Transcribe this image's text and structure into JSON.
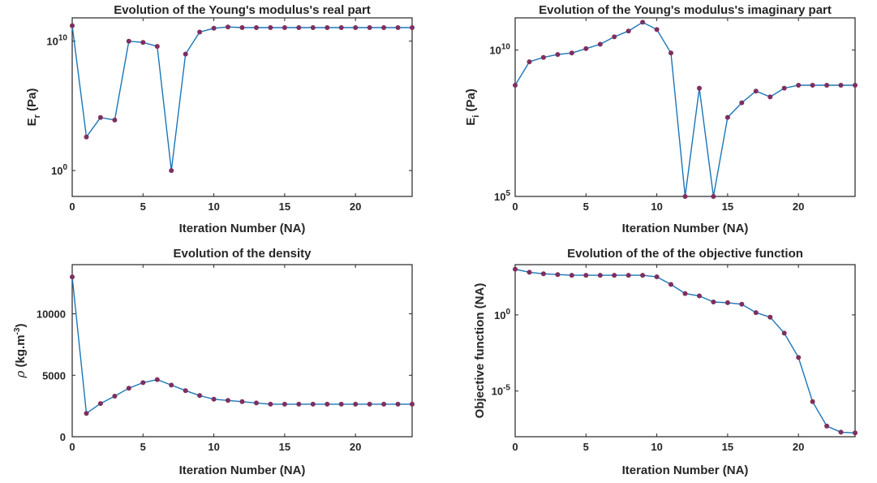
{
  "chart_data": [
    {
      "type": "line",
      "title": "Evolution of the Young's modulus's real part",
      "xlabel": "Iteration Number (NA)",
      "ylabel": "E_r (Pa)",
      "yscale": "log",
      "xlim": [
        0,
        24
      ],
      "ylim_log10": [
        -2,
        11.8
      ],
      "x": [
        0,
        1,
        2,
        3,
        4,
        5,
        6,
        7,
        8,
        9,
        10,
        11,
        12,
        13,
        14,
        15,
        16,
        17,
        18,
        19,
        20,
        21,
        22,
        23,
        24
      ],
      "y_log10": [
        11.2,
        2.6,
        4.1,
        3.9,
        10.0,
        9.9,
        9.6,
        0.0,
        9.0,
        10.7,
        11.0,
        11.1,
        11.05,
        11.05,
        11.05,
        11.05,
        11.05,
        11.05,
        11.05,
        11.05,
        11.05,
        11.05,
        11.05,
        11.05,
        11.05
      ],
      "xticks": [
        {
          "v": 0,
          "label": "0"
        },
        {
          "v": 5,
          "label": "5"
        },
        {
          "v": 10,
          "label": "10"
        },
        {
          "v": 15,
          "label": "15"
        },
        {
          "v": 20,
          "label": "20"
        }
      ],
      "yticks": [
        {
          "v": 0,
          "base": "10",
          "exp": "0"
        },
        {
          "v": 10,
          "base": "10",
          "exp": "10"
        }
      ]
    },
    {
      "type": "line",
      "title": "Evolution of the Young's modulus's imaginary part",
      "xlabel": "Iteration Number (NA)",
      "ylabel": "E_i (Pa)",
      "yscale": "log",
      "xlim": [
        0,
        24
      ],
      "ylim_log10": [
        5,
        11.1
      ],
      "x": [
        0,
        1,
        2,
        3,
        4,
        5,
        6,
        7,
        8,
        9,
        10,
        11,
        12,
        13,
        14,
        15,
        16,
        17,
        18,
        19,
        20,
        21,
        22,
        23,
        24
      ],
      "y_log10": [
        8.8,
        9.6,
        9.75,
        9.85,
        9.9,
        10.05,
        10.2,
        10.45,
        10.65,
        10.95,
        10.7,
        9.9,
        5.0,
        8.7,
        5.0,
        7.7,
        8.2,
        8.6,
        8.4,
        8.7,
        8.8,
        8.8,
        8.8,
        8.8,
        8.8
      ],
      "xticks": [
        {
          "v": 0,
          "label": "0"
        },
        {
          "v": 5,
          "label": "5"
        },
        {
          "v": 10,
          "label": "10"
        },
        {
          "v": 15,
          "label": "15"
        },
        {
          "v": 20,
          "label": "20"
        }
      ],
      "yticks": [
        {
          "v": 5,
          "base": "10",
          "exp": "5"
        },
        {
          "v": 10,
          "base": "10",
          "exp": "10"
        }
      ]
    },
    {
      "type": "line",
      "title": "Evolution of the density",
      "xlabel": "Iteration Number (NA)",
      "ylabel": "ρ (kg.m^-3)",
      "yscale": "linear",
      "xlim": [
        0,
        24
      ],
      "ylim": [
        0,
        14000
      ],
      "x": [
        0,
        1,
        2,
        3,
        4,
        5,
        6,
        7,
        8,
        9,
        10,
        11,
        12,
        13,
        14,
        15,
        16,
        17,
        18,
        19,
        20,
        21,
        22,
        23,
        24
      ],
      "y": [
        13000,
        1900,
        2700,
        3300,
        3950,
        4400,
        4650,
        4200,
        3750,
        3350,
        3050,
        2950,
        2850,
        2750,
        2650,
        2650,
        2650,
        2650,
        2650,
        2650,
        2650,
        2650,
        2650,
        2650,
        2650
      ],
      "xticks": [
        {
          "v": 0,
          "label": "0"
        },
        {
          "v": 5,
          "label": "5"
        },
        {
          "v": 10,
          "label": "10"
        },
        {
          "v": 15,
          "label": "15"
        },
        {
          "v": 20,
          "label": "20"
        }
      ],
      "yticks": [
        {
          "v": 0,
          "label": "0"
        },
        {
          "v": 5000,
          "label": "5000"
        },
        {
          "v": 10000,
          "label": "10000"
        }
      ]
    },
    {
      "type": "line",
      "title": "Evolution of the of the objective function",
      "xlabel": "Iteration Number (NA)",
      "ylabel": "Objective function (NA)",
      "yscale": "log",
      "xlim": [
        0,
        24
      ],
      "ylim_log10": [
        -8,
        3.3
      ],
      "x": [
        0,
        1,
        2,
        3,
        4,
        5,
        6,
        7,
        8,
        9,
        10,
        11,
        12,
        13,
        14,
        15,
        16,
        17,
        18,
        19,
        20,
        21,
        22,
        23,
        24
      ],
      "y_log10": [
        3.0,
        2.8,
        2.7,
        2.65,
        2.6,
        2.6,
        2.6,
        2.6,
        2.6,
        2.6,
        2.5,
        2.0,
        1.4,
        1.25,
        0.85,
        0.8,
        0.7,
        0.15,
        -0.15,
        -1.2,
        -2.8,
        -5.7,
        -7.3,
        -7.7,
        -7.75
      ],
      "xticks": [
        {
          "v": 0,
          "label": "0"
        },
        {
          "v": 5,
          "label": "5"
        },
        {
          "v": 10,
          "label": "10"
        },
        {
          "v": 15,
          "label": "15"
        },
        {
          "v": 20,
          "label": "20"
        }
      ],
      "yticks": [
        {
          "v": 0,
          "base": "10",
          "exp": "0"
        },
        {
          "v": -5,
          "base": "10",
          "exp": "-5"
        }
      ]
    }
  ],
  "colors": {
    "line": "#1a76b8",
    "marker": "#7e2f5e",
    "axis": "#262626"
  }
}
